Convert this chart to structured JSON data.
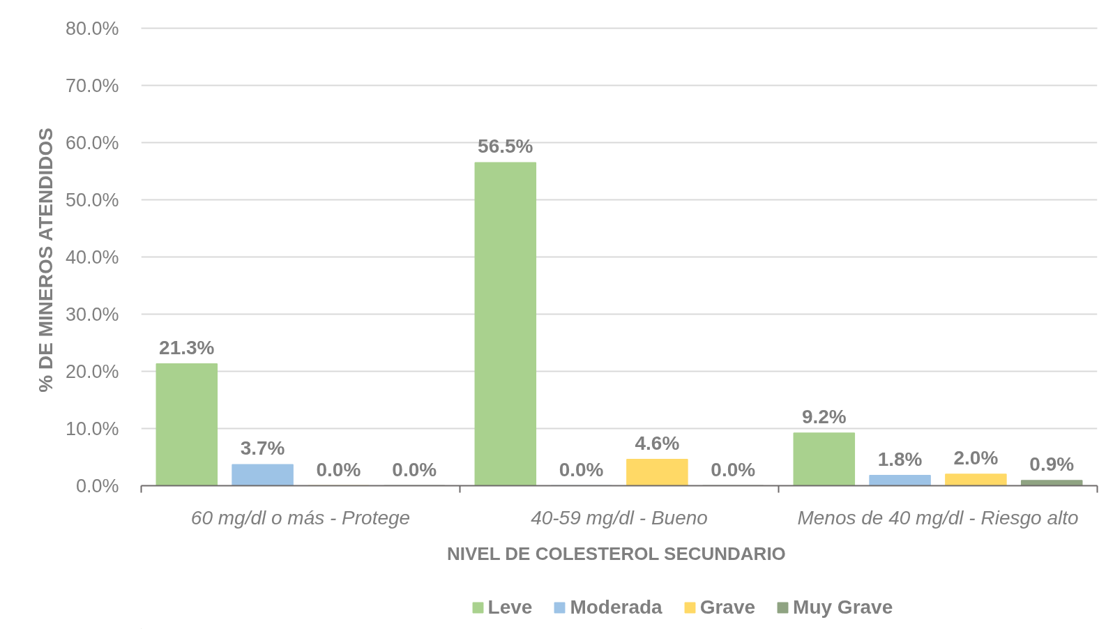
{
  "chart_data": {
    "type": "bar",
    "xlabel": "NIVEL DE  COLESTEROL SECUNDARIO",
    "ylabel": "% DE MINEROS  ATENDIDOS",
    "categories": [
      "60 mg/dl o más - Protege",
      "40-59 mg/dl - Bueno",
      "Menos de 40 mg/dl - Riesgo alto"
    ],
    "series": [
      {
        "name": "Leve",
        "color": "#a9d18e",
        "values": [
          21.3,
          56.5,
          9.2
        ],
        "value_labels": [
          "21.3%",
          "56.5%",
          "9.2%"
        ]
      },
      {
        "name": "Moderada",
        "color": "#9dc3e6",
        "values": [
          3.7,
          0.0,
          1.8
        ],
        "value_labels": [
          "3.7%",
          "0.0%",
          "1.8%"
        ]
      },
      {
        "name": "Grave",
        "color": "#ffd966",
        "values": [
          0.0,
          4.6,
          2.0
        ],
        "value_labels": [
          "0.0%",
          "4.6%",
          "2.0%"
        ]
      },
      {
        "name": "Muy Grave",
        "color": "#8fa382",
        "values": [
          0.0,
          0.0,
          0.9
        ],
        "value_labels": [
          "0.0%",
          "0.0%",
          "0.9%"
        ]
      }
    ],
    "ylim": [
      0,
      80
    ],
    "yticks": [
      {
        "value": 0,
        "label": "0.0%"
      },
      {
        "value": 10,
        "label": "10.0%"
      },
      {
        "value": 20,
        "label": "20.0%"
      },
      {
        "value": 30,
        "label": "30.0%"
      },
      {
        "value": 40,
        "label": "40.0%"
      },
      {
        "value": 50,
        "label": "50.0%"
      },
      {
        "value": 60,
        "label": "60.0%"
      },
      {
        "value": 70,
        "label": "70.0%"
      },
      {
        "value": 80,
        "label": "80.0%"
      }
    ],
    "grid": "y",
    "legend": "bottom"
  }
}
